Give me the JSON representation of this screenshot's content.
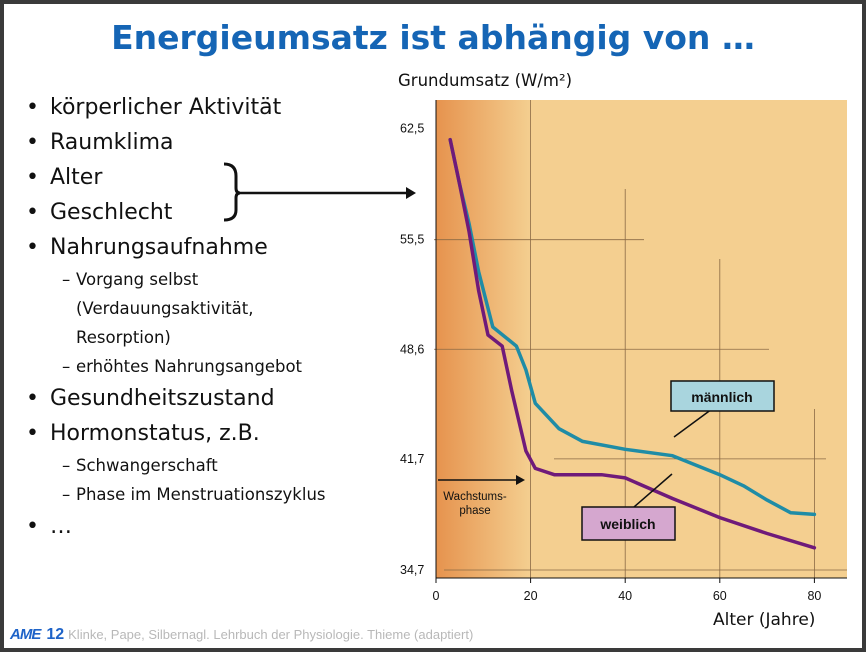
{
  "slide": {
    "title": "Energieumsatz ist abhängig von …",
    "bullets": [
      {
        "level": 1,
        "text": "körperlicher Aktivität"
      },
      {
        "level": 1,
        "text": "Raumklima"
      },
      {
        "level": 1,
        "text": "Alter"
      },
      {
        "level": 1,
        "text": "Geschlecht"
      },
      {
        "level": 1,
        "text": "Nahrungsaufnahme"
      },
      {
        "level": 2,
        "text": "Vorgang selbst"
      },
      {
        "level": 3,
        "text": "(Verdauungsaktivität,"
      },
      {
        "level": 3,
        "text": "Resorption)"
      },
      {
        "level": 2,
        "text": "erhöhtes Nahrungsangebot"
      },
      {
        "level": 1,
        "text": "Gesundheitszustand"
      },
      {
        "level": 1,
        "text": "Hormonstatus, z.B."
      },
      {
        "level": 2,
        "text": "Schwangerschaft"
      },
      {
        "level": 2,
        "text": "Phase im Menstruationszyklus"
      },
      {
        "level": 1,
        "text": "…"
      }
    ],
    "footer": {
      "logo": "AME",
      "page": "12",
      "source": "Klinke, Pape, Silbernagl. Lehrbuch der Physiologie. Thieme (adaptiert)"
    }
  },
  "chart_data": {
    "type": "line",
    "ylabel": "Grundumsatz (W/m²)",
    "xlabel": "Alter (Jahre)",
    "xlim": [
      0,
      85
    ],
    "ylim": [
      34.7,
      62.5
    ],
    "xticks": [
      0,
      20,
      40,
      60,
      80
    ],
    "yticks": [
      34.7,
      41.7,
      48.6,
      55.5,
      62.5
    ],
    "ytick_labels": [
      "34,7",
      "41,7",
      "48,6",
      "55,5",
      "62,5"
    ],
    "background": "#f4cf90",
    "band_color": "#e9a566",
    "grid": true,
    "series": [
      {
        "name": "männlich",
        "color": "#1f8ca6",
        "x": [
          3,
          5,
          7,
          9,
          12,
          17,
          19,
          21,
          26,
          31,
          40,
          50,
          60,
          65,
          70,
          75,
          80
        ],
        "y": [
          61.8,
          59.0,
          56.5,
          53.5,
          50.0,
          48.8,
          47.3,
          45.2,
          43.6,
          42.8,
          42.3,
          41.9,
          40.7,
          40.0,
          39.1,
          38.3,
          38.2
        ]
      },
      {
        "name": "weiblich",
        "color": "#6f1a7a",
        "x": [
          3,
          5,
          7,
          9,
          11,
          14,
          16,
          19,
          21,
          25,
          30,
          35,
          40,
          50,
          60,
          70,
          80
        ],
        "y": [
          61.8,
          59.0,
          56.0,
          52.3,
          49.5,
          48.8,
          46.0,
          42.2,
          41.1,
          40.7,
          40.7,
          40.7,
          40.5,
          39.2,
          38.0,
          37.0,
          36.1
        ]
      }
    ],
    "legend_labels": {
      "m": "männlich",
      "w": "weiblich"
    },
    "annotation": {
      "text_line1": "Wachstums-",
      "text_line2": "phase"
    }
  }
}
